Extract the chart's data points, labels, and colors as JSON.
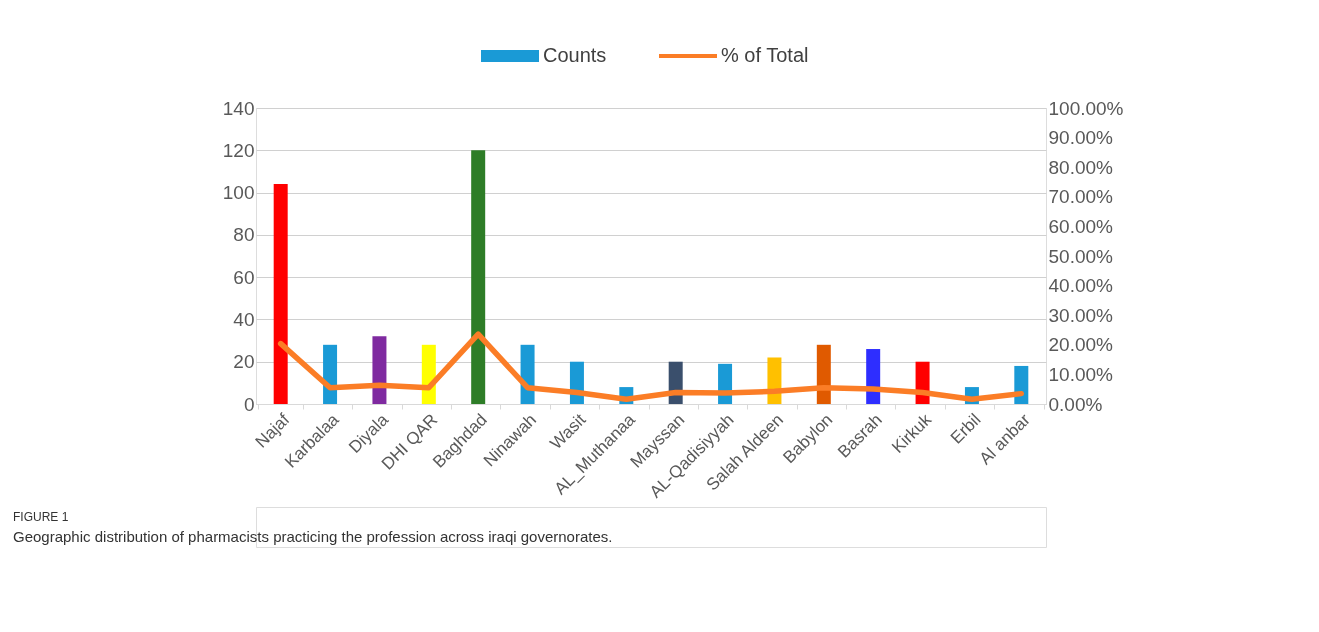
{
  "chart_data": {
    "type": "bar",
    "categories": [
      "Najaf",
      "Karbalaa",
      "Diyala",
      "DHI QAR",
      "Baghdad",
      "Ninawah",
      "Wasit",
      "AL_Muthanaa",
      "Mayssan",
      "AL-Qadisiyyah",
      "Salah Aldeen",
      "Babylon",
      "Basrah",
      "Kirkuk",
      "Erbil",
      "Al anbar"
    ],
    "series": [
      {
        "name": "Counts",
        "color": "#1a9ad6",
        "colors": [
          "#ff0000",
          "#1a9ad6",
          "#7f2aa0",
          "#ffff00",
          "#2e7d27",
          "#1a9ad6",
          "#1a9ad6",
          "#1a9ad6",
          "#3a4f6c",
          "#1a9ad6",
          "#ffc000",
          "#e05a00",
          "#2e2eff",
          "#ff0000",
          "#1a9ad6",
          "#1a9ad6"
        ],
        "values": [
          104,
          28,
          32,
          28,
          120,
          28,
          20,
          8,
          20,
          19,
          22,
          28,
          26,
          20,
          8,
          18
        ]
      },
      {
        "name": "% of Total",
        "type": "line",
        "axis": "y2",
        "color": "#fb7d26",
        "values": [
          20.4,
          5.5,
          6.3,
          5.5,
          23.6,
          5.5,
          3.9,
          1.6,
          3.9,
          3.7,
          4.3,
          5.5,
          5.1,
          3.9,
          1.6,
          3.5
        ]
      }
    ],
    "ylim": [
      0,
      140
    ],
    "yticks": [
      0,
      20,
      40,
      60,
      80,
      100,
      120,
      140
    ],
    "y2lim": [
      0,
      100
    ],
    "y2ticks": [
      {
        "value": 0,
        "label": "0.00%"
      },
      {
        "value": 10,
        "label": "10.00%"
      },
      {
        "value": 20,
        "label": "20.00%"
      },
      {
        "value": 30,
        "label": "30.00%"
      },
      {
        "value": 40,
        "label": "40.00%"
      },
      {
        "value": 50,
        "label": "50.00%"
      },
      {
        "value": 60,
        "label": "60.00%"
      },
      {
        "value": 70,
        "label": "70.00%"
      },
      {
        "value": 80,
        "label": "80.00%"
      },
      {
        "value": 90,
        "label": "90.00%"
      },
      {
        "value": 100,
        "label": "100.00%"
      }
    ],
    "grid": "y",
    "legend": "top",
    "annotations": [
      "FIGURE 1",
      "Geographic distribution of pharmacists practicing the profession across iraqi governorates."
    ]
  }
}
